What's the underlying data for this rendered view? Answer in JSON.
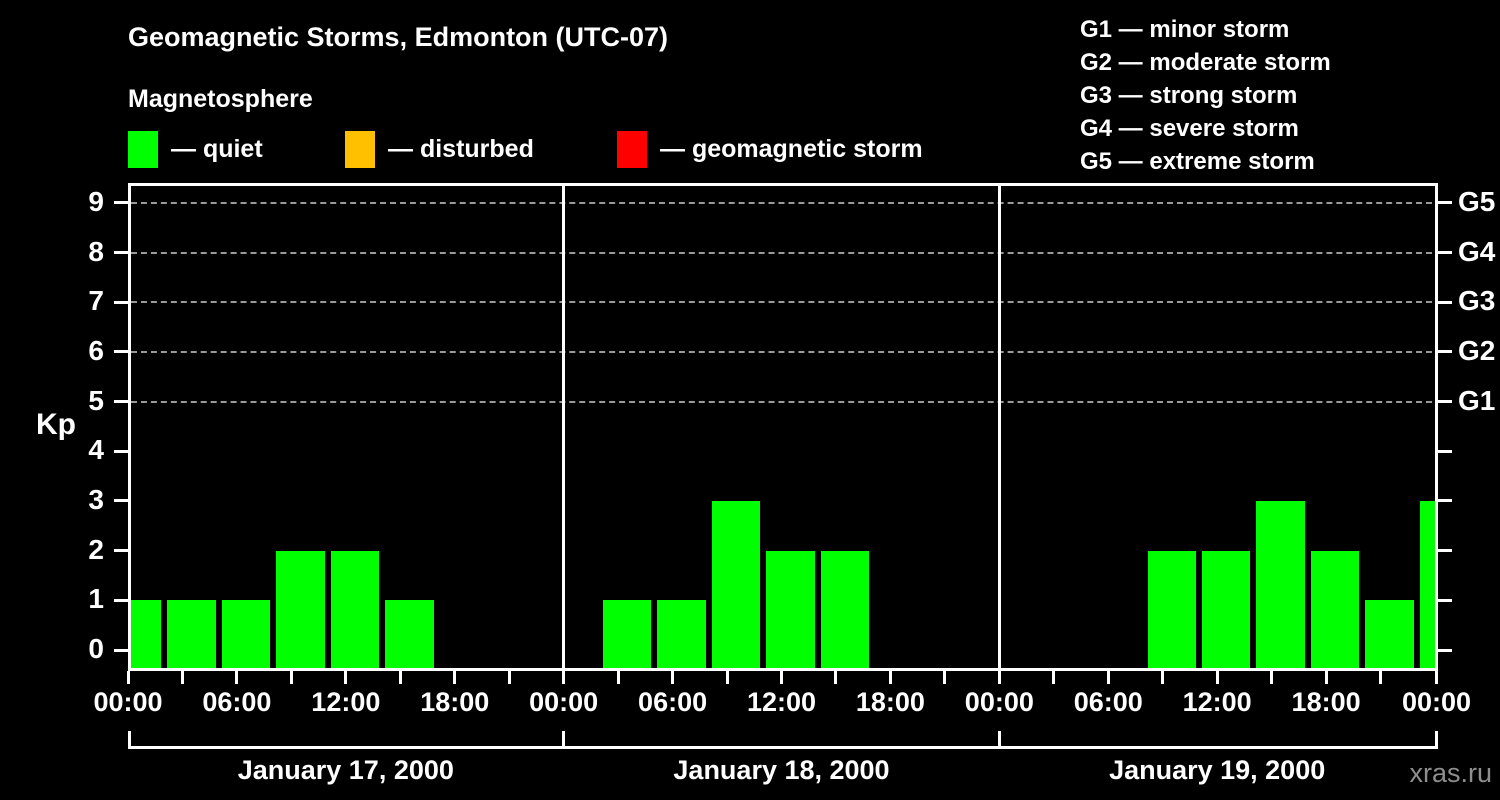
{
  "header": {
    "title": "Geomagnetic Storms, Edmonton (UTC-07)",
    "subtitle": "Magnetosphere"
  },
  "legend": {
    "dash": "—",
    "items": [
      {
        "name": "quiet",
        "label": "quiet",
        "color": "#00ff00"
      },
      {
        "name": "disturbed",
        "label": "disturbed",
        "color": "#ffc000"
      },
      {
        "name": "storm",
        "label": "geomagnetic storm",
        "color": "#ff0000"
      }
    ]
  },
  "g_scale_legend": [
    {
      "code": "G1",
      "label": "minor storm"
    },
    {
      "code": "G2",
      "label": "moderate storm"
    },
    {
      "code": "G3",
      "label": "strong storm"
    },
    {
      "code": "G4",
      "label": "severe storm"
    },
    {
      "code": "G5",
      "label": "extreme storm"
    }
  ],
  "watermark": "xras.ru",
  "chart_data": {
    "type": "bar",
    "title": "Geomagnetic Storms, Edmonton (UTC-07)",
    "subtitle": "Magnetosphere",
    "ylabel": "Kp",
    "ylim": [
      0,
      9
    ],
    "y_ticks": [
      0,
      1,
      2,
      3,
      4,
      5,
      6,
      7,
      8,
      9
    ],
    "grid_dashed_at_kp": [
      5,
      6,
      7,
      8,
      9
    ],
    "right_axis_labels": [
      {
        "kp": 5,
        "label": "G1"
      },
      {
        "kp": 6,
        "label": "G2"
      },
      {
        "kp": 7,
        "label": "G3"
      },
      {
        "kp": 8,
        "label": "G4"
      },
      {
        "kp": 9,
        "label": "G5"
      }
    ],
    "x_minor_tick_hours": 3,
    "x_label_hours": [
      0,
      6,
      12,
      18
    ],
    "x_label_format": [
      "00:00",
      "06:00",
      "12:00",
      "18:00"
    ],
    "bar_status_colors": {
      "quiet": "#00ff00",
      "disturbed": "#ffc000",
      "storm": "#ff0000"
    },
    "days": [
      {
        "date": "January 17, 2000",
        "bars": [
          {
            "start_hour": 0,
            "end_hour": 2,
            "kp": 1,
            "status": "quiet"
          },
          {
            "start_hour": 2,
            "end_hour": 5,
            "kp": 1,
            "status": "quiet"
          },
          {
            "start_hour": 5,
            "end_hour": 8,
            "kp": 1,
            "status": "quiet"
          },
          {
            "start_hour": 8,
            "end_hour": 11,
            "kp": 2,
            "status": "quiet"
          },
          {
            "start_hour": 11,
            "end_hour": 14,
            "kp": 2,
            "status": "quiet"
          },
          {
            "start_hour": 14,
            "end_hour": 17,
            "kp": 1,
            "status": "quiet"
          }
        ]
      },
      {
        "date": "January 18, 2000",
        "bars": [
          {
            "start_hour": 2,
            "end_hour": 5,
            "kp": 1,
            "status": "quiet"
          },
          {
            "start_hour": 5,
            "end_hour": 8,
            "kp": 1,
            "status": "quiet"
          },
          {
            "start_hour": 8,
            "end_hour": 11,
            "kp": 3,
            "status": "quiet"
          },
          {
            "start_hour": 11,
            "end_hour": 14,
            "kp": 2,
            "status": "quiet"
          },
          {
            "start_hour": 14,
            "end_hour": 17,
            "kp": 2,
            "status": "quiet"
          }
        ]
      },
      {
        "date": "January 19, 2000",
        "bars": [
          {
            "start_hour": 8,
            "end_hour": 11,
            "kp": 2,
            "status": "quiet"
          },
          {
            "start_hour": 11,
            "end_hour": 14,
            "kp": 2,
            "status": "quiet"
          },
          {
            "start_hour": 14,
            "end_hour": 17,
            "kp": 3,
            "status": "quiet"
          },
          {
            "start_hour": 17,
            "end_hour": 20,
            "kp": 2,
            "status": "quiet"
          },
          {
            "start_hour": 20,
            "end_hour": 23,
            "kp": 1,
            "status": "quiet"
          },
          {
            "start_hour": 23,
            "end_hour": 24,
            "kp": 3,
            "status": "quiet"
          }
        ]
      }
    ]
  }
}
